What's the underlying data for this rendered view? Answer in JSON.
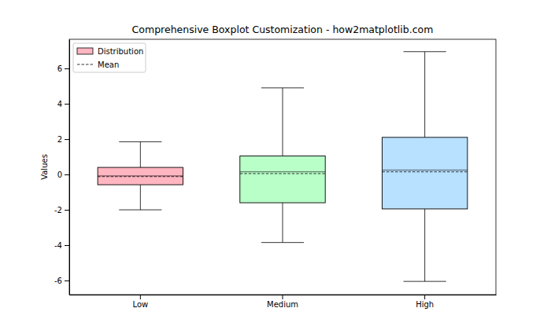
{
  "chart_data": {
    "type": "box",
    "title": "Comprehensive Boxplot Customization - how2matplotlib.com",
    "y_label": "Values",
    "categories": [
      "Low",
      "Medium",
      "High"
    ],
    "ylim": [
      -6.8,
      7.65
    ],
    "yticks": [
      -6,
      -4,
      -2,
      0,
      2,
      4,
      6
    ],
    "legend": "upper left",
    "series": [
      {
        "name": "Distribution",
        "type": "box",
        "colors": [
          "#ffb6c1",
          "#b8ffc8",
          "#b8e0ff"
        ],
        "whisker_low": [
          -2.0,
          -3.85,
          -6.05
        ],
        "q1": [
          -0.58,
          -1.6,
          -1.95
        ],
        "median": [
          -0.08,
          0.15,
          0.25
        ],
        "q3": [
          0.4,
          1.05,
          2.1
        ],
        "whisker_high": [
          1.85,
          4.9,
          6.95
        ]
      },
      {
        "name": "Mean",
        "type": "line",
        "line_style": "dashed",
        "color": "#000000",
        "values": [
          -0.12,
          0.05,
          0.15
        ]
      }
    ]
  }
}
